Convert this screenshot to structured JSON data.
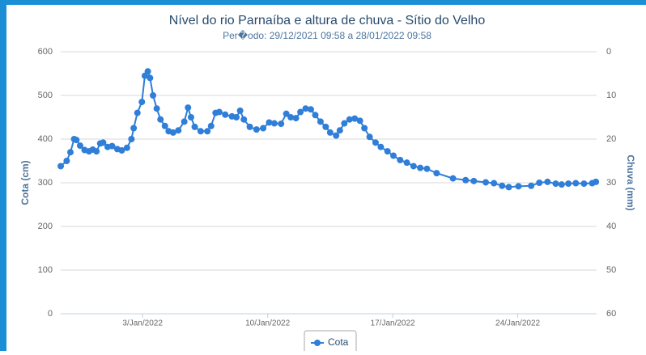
{
  "chart_data": {
    "type": "line",
    "title": "Nível do rio Parnaíba e altura de chuva - Sítio do Velho",
    "subtitle": "Per�odo: 29/12/2021 09:58 a 28/01/2022 09:58",
    "y_label": "Cota (cm)",
    "y2_label": "Chuva (mm)",
    "xlim": [
      "2021-12-29T09:58",
      "2022-01-28T09:58"
    ],
    "xticks": [
      {
        "value": "2022-01-03T00:00",
        "label": "3/Jan/2022"
      },
      {
        "value": "2022-01-10T00:00",
        "label": "10/Jan/2022"
      },
      {
        "value": "2022-01-17T00:00",
        "label": "17/Jan/2022"
      },
      {
        "value": "2022-01-24T00:00",
        "label": "24/Jan/2022"
      }
    ],
    "ylim": [
      0,
      600
    ],
    "yticks": [
      0,
      100,
      200,
      300,
      400,
      500,
      600
    ],
    "y2lim": [
      60,
      0
    ],
    "y2ticks": [
      0,
      10,
      20,
      30,
      40,
      50,
      60
    ],
    "grid": true,
    "legend": "bottom",
    "x": [
      "2021-12-29T10:00",
      "2021-12-29T18:00",
      "2021-12-29T23:00",
      "2021-12-30T04:00",
      "2021-12-30T07:00",
      "2021-12-30T12:00",
      "2021-12-30T18:00",
      "2021-12-31T00:00",
      "2021-12-31T05:00",
      "2021-12-31T10:00",
      "2021-12-31T15:00",
      "2021-12-31T19:00",
      "2022-01-01T01:00",
      "2022-01-01T07:00",
      "2022-01-01T14:00",
      "2022-01-01T20:00",
      "2022-01-02T03:00",
      "2022-01-02T09:00",
      "2022-01-02T12:00",
      "2022-01-02T17:00",
      "2022-01-02T23:00",
      "2022-01-03T03:00",
      "2022-01-03T07:00",
      "2022-01-03T10:00",
      "2022-01-03T14:00",
      "2022-01-03T19:00",
      "2022-01-04T00:00",
      "2022-01-04T06:00",
      "2022-01-04T11:00",
      "2022-01-04T17:00",
      "2022-01-05T00:00",
      "2022-01-05T08:00",
      "2022-01-05T13:00",
      "2022-01-05T17:00",
      "2022-01-05T22:00",
      "2022-01-06T06:00",
      "2022-01-06T15:00",
      "2022-01-06T20:00",
      "2022-01-07T02:00",
      "2022-01-07T07:00",
      "2022-01-07T15:00",
      "2022-01-08T00:00",
      "2022-01-08T06:00",
      "2022-01-08T11:00",
      "2022-01-08T16:00",
      "2022-01-09T00:00",
      "2022-01-09T09:00",
      "2022-01-09T18:00",
      "2022-01-10T02:00",
      "2022-01-10T09:00",
      "2022-01-10T18:00",
      "2022-01-11T01:00",
      "2022-01-11T07:00",
      "2022-01-11T14:00",
      "2022-01-11T20:00",
      "2022-01-12T03:00",
      "2022-01-12T10:00",
      "2022-01-12T16:00",
      "2022-01-12T23:00",
      "2022-01-13T06:00",
      "2022-01-13T12:00",
      "2022-01-13T20:00",
      "2022-01-14T01:00",
      "2022-01-14T07:00",
      "2022-01-14T14:00",
      "2022-01-14T21:00",
      "2022-01-15T04:00",
      "2022-01-15T10:00",
      "2022-01-15T17:00",
      "2022-01-16T01:00",
      "2022-01-16T08:00",
      "2022-01-16T17:00",
      "2022-01-17T01:00",
      "2022-01-17T10:00",
      "2022-01-17T19:00",
      "2022-01-18T04:00",
      "2022-01-18T13:00",
      "2022-01-18T22:00",
      "2022-01-19T11:00",
      "2022-01-20T09:00",
      "2022-01-21T02:00",
      "2022-01-21T13:00",
      "2022-01-22T05:00",
      "2022-01-22T16:00",
      "2022-01-23T03:00",
      "2022-01-23T12:00",
      "2022-01-24T01:00",
      "2022-01-24T18:00",
      "2022-01-25T05:00",
      "2022-01-25T16:00",
      "2022-01-26T03:00",
      "2022-01-26T11:00",
      "2022-01-26T20:00",
      "2022-01-27T06:00",
      "2022-01-27T17:00",
      "2022-01-28T04:00",
      "2022-01-28T09:00"
    ],
    "series": [
      {
        "name": "Cota",
        "color": "#2f7ed8",
        "values": [
          338,
          350,
          370,
          400,
          398,
          385,
          375,
          372,
          376,
          372,
          390,
          392,
          382,
          384,
          377,
          374,
          380,
          400,
          425,
          460,
          485,
          545,
          555,
          540,
          500,
          470,
          445,
          430,
          418,
          415,
          420,
          440,
          472,
          450,
          428,
          418,
          418,
          430,
          460,
          462,
          456,
          452,
          450,
          465,
          445,
          428,
          422,
          425,
          438,
          436,
          435,
          458,
          450,
          448,
          462,
          470,
          468,
          455,
          440,
          428,
          415,
          408,
          420,
          436,
          445,
          447,
          442,
          425,
          405,
          392,
          382,
          372,
          362,
          352,
          346,
          338,
          334,
          332,
          322,
          310,
          306,
          304,
          301,
          299,
          293,
          290,
          292,
          293,
          300,
          302,
          298,
          296,
          298,
          299,
          298,
          299,
          302
        ]
      }
    ]
  }
}
